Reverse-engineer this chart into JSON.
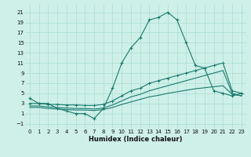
{
  "xlabel": "Humidex (Indice chaleur)",
  "bg_color": "#cef0e8",
  "grid_color": "#aaddd5",
  "line_color": "#1a7a6e",
  "xlim": [
    -0.5,
    23.5
  ],
  "ylim": [
    -2,
    22.5
  ],
  "yticks": [
    -1,
    1,
    3,
    5,
    7,
    9,
    11,
    13,
    15,
    17,
    19,
    21
  ],
  "xticks": [
    0,
    1,
    2,
    3,
    4,
    5,
    6,
    7,
    8,
    9,
    10,
    11,
    12,
    13,
    14,
    15,
    16,
    17,
    18,
    19,
    20,
    21,
    22,
    23
  ],
  "main_x": [
    0,
    1,
    2,
    3,
    4,
    5,
    6,
    7,
    8,
    9,
    10,
    11,
    12,
    13,
    14,
    15,
    16,
    17,
    18,
    19,
    20,
    21,
    22,
    23
  ],
  "main_y": [
    4,
    3,
    3,
    2,
    1.5,
    1,
    1,
    0,
    2,
    6,
    11,
    14,
    16,
    19.5,
    20,
    21,
    19.5,
    15,
    10.5,
    10,
    5.5,
    5,
    4.5,
    5
  ],
  "line2_x": [
    0,
    1,
    2,
    3,
    4,
    5,
    6,
    7,
    8,
    9,
    10,
    11,
    12,
    13,
    14,
    15,
    16,
    17,
    18,
    19,
    20,
    21,
    22,
    23
  ],
  "line2_y": [
    3,
    3,
    2.8,
    2.8,
    2.7,
    2.7,
    2.6,
    2.6,
    2.8,
    3.5,
    4.5,
    5.5,
    6.0,
    7.0,
    7.5,
    8.0,
    8.5,
    9.0,
    9.5,
    10.0,
    10.5,
    11.0,
    5.5,
    5.0
  ],
  "line3_x": [
    0,
    1,
    2,
    3,
    4,
    5,
    6,
    7,
    8,
    9,
    10,
    11,
    12,
    13,
    14,
    15,
    16,
    17,
    18,
    19,
    20,
    21,
    22,
    23
  ],
  "line3_y": [
    2.5,
    2.5,
    2.3,
    2.2,
    2.1,
    2.0,
    2.0,
    1.9,
    2.1,
    2.7,
    3.5,
    4.3,
    4.8,
    5.5,
    6.0,
    6.5,
    7.0,
    7.5,
    8.0,
    8.5,
    9.0,
    9.5,
    5.0,
    4.5
  ],
  "line4_x": [
    0,
    1,
    2,
    3,
    4,
    5,
    6,
    7,
    8,
    9,
    10,
    11,
    12,
    13,
    14,
    15,
    16,
    17,
    18,
    19,
    20,
    21,
    22,
    23
  ],
  "line4_y": [
    2.2,
    2.2,
    2.0,
    1.9,
    1.8,
    1.7,
    1.7,
    1.6,
    1.8,
    2.2,
    2.8,
    3.3,
    3.8,
    4.3,
    4.6,
    5.0,
    5.3,
    5.6,
    5.9,
    6.1,
    6.3,
    6.5,
    4.8,
    4.5
  ]
}
